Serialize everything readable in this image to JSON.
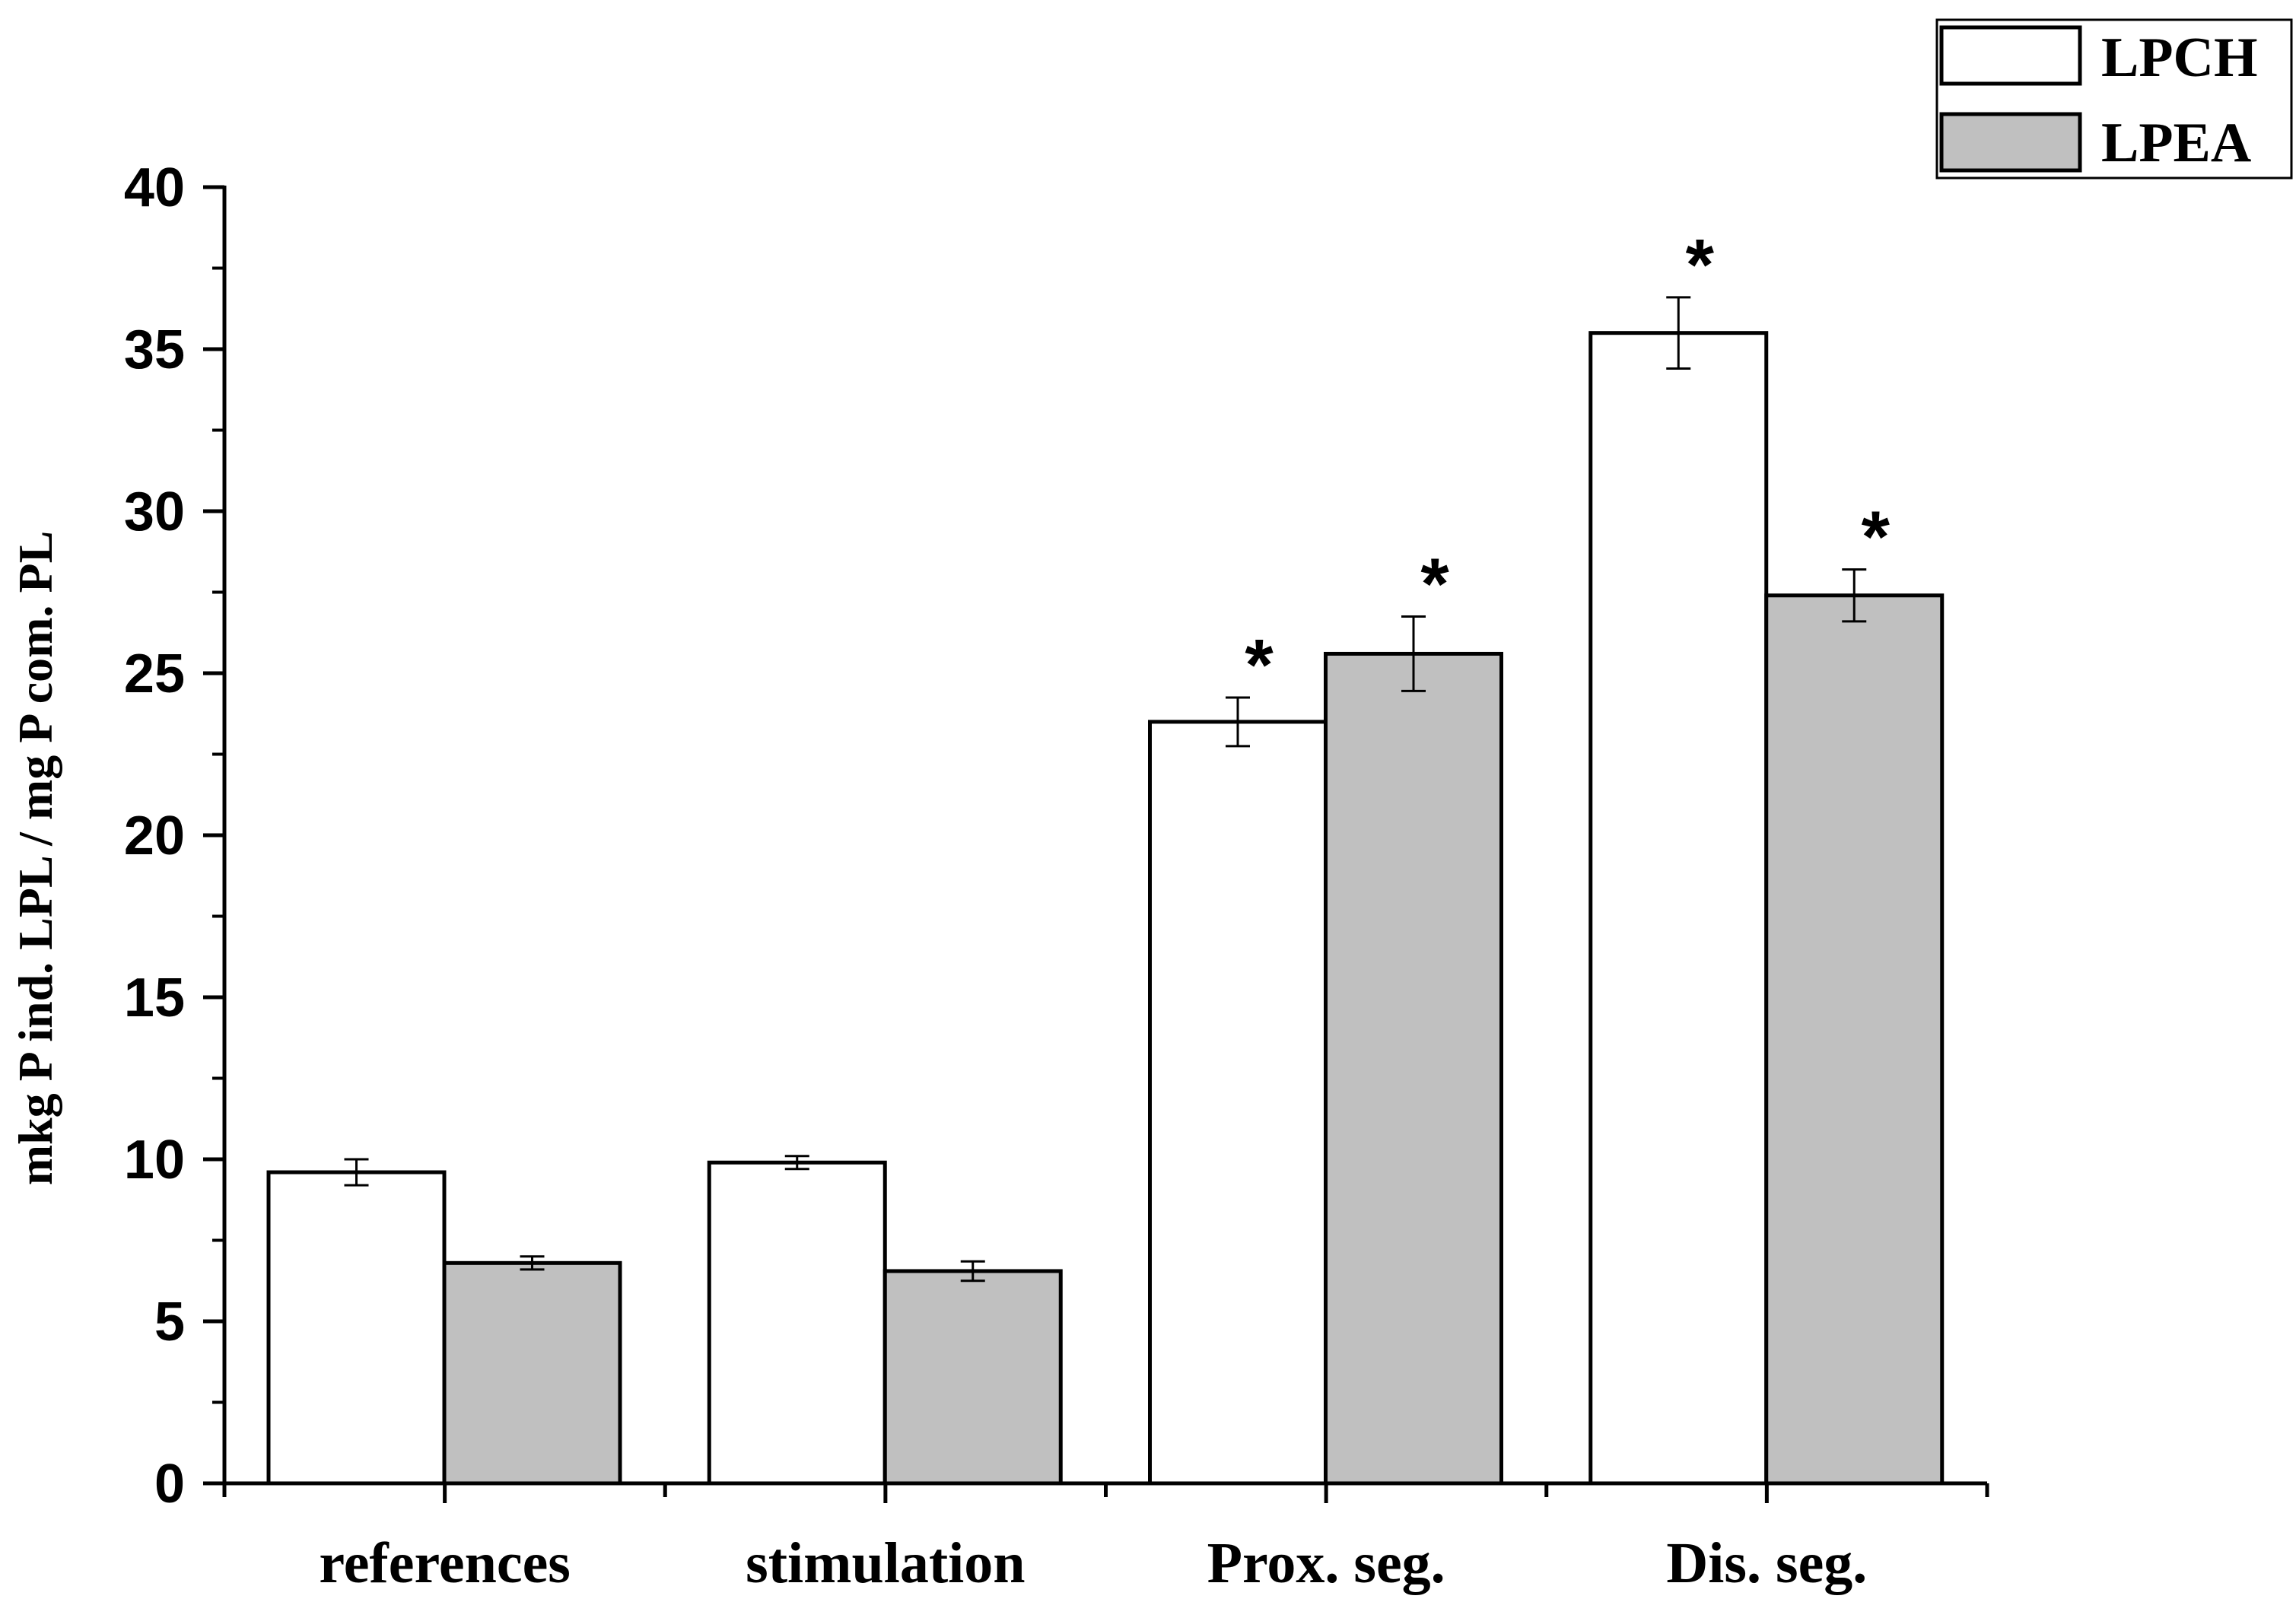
{
  "chart_data": {
    "type": "bar",
    "title": "",
    "xlabel": "",
    "ylabel": "mkg P ind. LPL / mg P com. PL",
    "ylim": [
      0,
      40
    ],
    "yticks": [
      "0",
      "5",
      "10",
      "15",
      "20",
      "25",
      "30",
      "35",
      "40"
    ],
    "categories": [
      "references",
      "stimulation",
      "Prox. seg.",
      "Dis. seg."
    ],
    "series": [
      {
        "name": "LPCH",
        "color": "#ffffff",
        "values": [
          9.6,
          9.9,
          23.5,
          35.5
        ],
        "errors": [
          0.4,
          0.2,
          0.75,
          1.1
        ],
        "significant": [
          false,
          false,
          true,
          true
        ]
      },
      {
        "name": "LPEA",
        "color": "#c0c0c0",
        "values": [
          6.8,
          6.55,
          25.6,
          27.4
        ],
        "errors": [
          0.2,
          0.3,
          1.15,
          0.8
        ],
        "significant": [
          false,
          false,
          true,
          true
        ]
      }
    ],
    "significance_marker": "*",
    "legend_position": "top-right"
  }
}
